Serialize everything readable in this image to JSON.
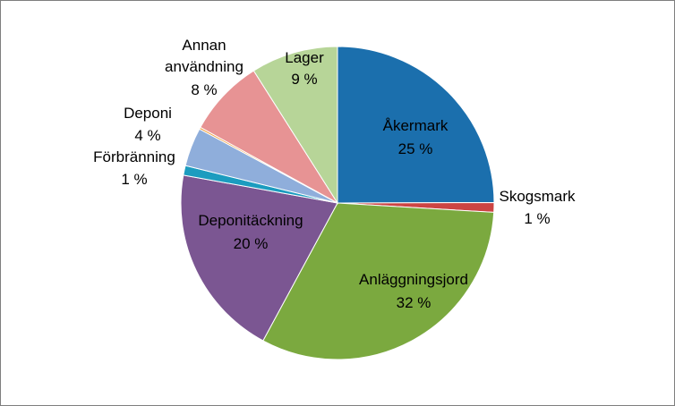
{
  "chart_data": {
    "type": "pie",
    "title": "",
    "legend": "none",
    "slices": [
      {
        "label": "Åkermark",
        "value": 25,
        "display": "25 %",
        "color": "#1b6fad"
      },
      {
        "label": "Skogsmark",
        "value": 1,
        "display": "1 %",
        "color": "#cc4443"
      },
      {
        "label": "Anläggningsjord",
        "value": 32,
        "display": "32 %",
        "color": "#7ba93f"
      },
      {
        "label": "Deponitäckning",
        "value": 20,
        "display": "20 %",
        "color": "#7b5692"
      },
      {
        "label": "Förbränning",
        "value": 1,
        "display": "1 %",
        "color": "#1c9cbf"
      },
      {
        "label": "Deponi",
        "value": 4,
        "display": "4 %",
        "color": "#8faedb"
      },
      {
        "label": "",
        "value": 0.2,
        "display": "",
        "color": "#f0a040"
      },
      {
        "label": "Annan användning",
        "value": 8,
        "display": "8 %",
        "color": "#e79394"
      },
      {
        "label": "Lager",
        "value": 9,
        "display": "9 %",
        "color": "#b7d598"
      }
    ]
  }
}
